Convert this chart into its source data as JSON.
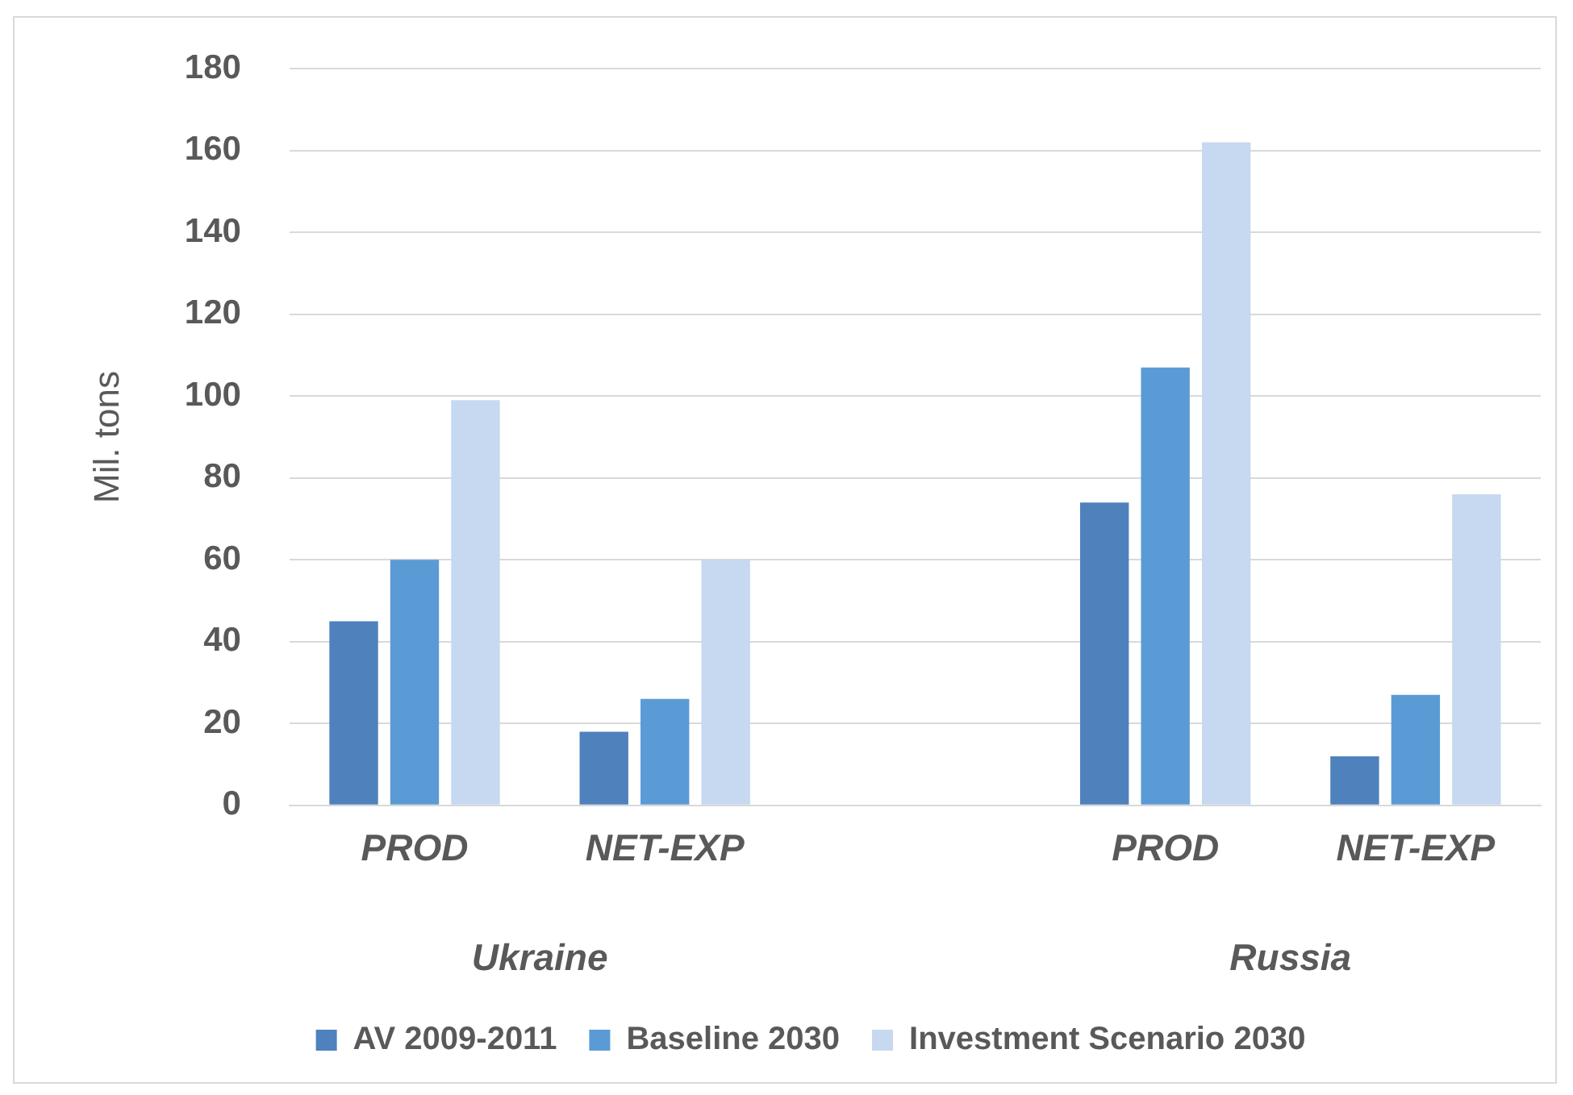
{
  "chart_data": {
    "type": "bar",
    "ylabel": "Mil. tons",
    "categories": [
      "PROD",
      "NET-EXP",
      null,
      "PROD",
      "NET-EXP"
    ],
    "series": [
      {
        "name": "AV 2009-2011",
        "color": "#4f81bd",
        "values": [
          45,
          18,
          null,
          74,
          12
        ]
      },
      {
        "name": "Baseline 2030",
        "color": "#5b9bd5",
        "values": [
          60,
          26,
          null,
          107,
          27
        ]
      },
      {
        "name": "Investment Scenario 2030",
        "color": "#c6d9f0",
        "values": [
          99,
          60,
          null,
          162,
          76
        ]
      }
    ],
    "annotations": [
      "Ukraine",
      "Russia"
    ],
    "ylim": [
      0,
      180
    ],
    "yticks": [
      0,
      20,
      40,
      60,
      80,
      100,
      120,
      140,
      160,
      180
    ],
    "grid": "y",
    "legend": "bottom"
  }
}
